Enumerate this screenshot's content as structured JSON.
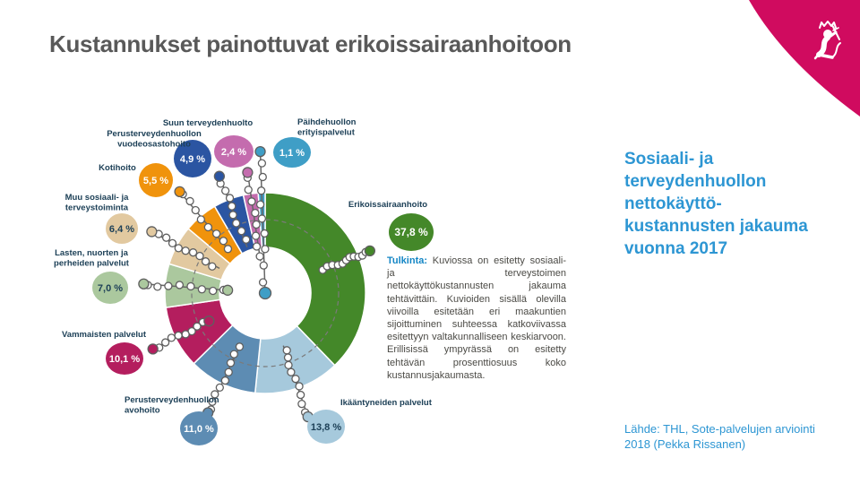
{
  "slide": {
    "title": "Kustannukset painottuvat erikoissairaanhoitoon",
    "accent_color": "#d00b5f"
  },
  "chart_data": {
    "type": "pie",
    "subtype": "donut",
    "title": "Sosiaali- ja terveydenhuollon nettokäyttökustannusten jakauma vuonna 2017",
    "unit": "%",
    "start_angle_deg": 0,
    "direction": "clockwise",
    "legend_note": "Katkoviiva = valtakunnallinen keskiarvo; viivojen pisteet = eri maakuntien sijoittuminen",
    "segments": [
      {
        "id": "erikois",
        "label": "Erikoissairaanhoito",
        "label_lines": [
          "Erikoissairaanhoito"
        ],
        "value": 37.8,
        "display": "37,8 %",
        "color": "#448829",
        "text_color": "#ffffff"
      },
      {
        "id": "ikaantyneiden",
        "label": "Ikääntyneiden palvelut",
        "label_lines": [
          "Ikääntyneiden palvelut"
        ],
        "value": 13.8,
        "display": "13,8 %",
        "color": "#a6c9dc",
        "text_color": "#1d4057"
      },
      {
        "id": "avohoito",
        "label": "Perusterveydenhuollon avohoito",
        "label_lines": [
          "Perusterveydenhuollon",
          "avohoito"
        ],
        "value": 11.0,
        "display": "11,0 %",
        "color": "#5d8cb3",
        "text_color": "#ffffff"
      },
      {
        "id": "vammaisten",
        "label": "Vammaisten palvelut",
        "label_lines": [
          "Vammaisten palvelut"
        ],
        "value": 10.1,
        "display": "10,1 %",
        "color": "#b41e5e",
        "text_color": "#ffffff"
      },
      {
        "id": "lasten",
        "label": "Lasten, nuorten ja perheiden palvelut",
        "label_lines": [
          "Lasten, nuorten ja",
          "perheiden palvelut"
        ],
        "value": 7.0,
        "display": "7,0 %",
        "color": "#abc89e",
        "text_color": "#1d4057"
      },
      {
        "id": "muu",
        "label": "Muu sosiaali- ja terveystoiminta",
        "label_lines": [
          "Muu sosiaali- ja",
          "terveystoiminta"
        ],
        "value": 6.4,
        "display": "6,4 %",
        "color": "#e2c9a0",
        "text_color": "#1d4057"
      },
      {
        "id": "kotihoito",
        "label": "Kotihoito",
        "label_lines": [
          "Kotihoito"
        ],
        "value": 5.5,
        "display": "5,5 %",
        "color": "#f0930c",
        "text_color": "#ffffff"
      },
      {
        "id": "vuodeosasto",
        "label": "Perusterveydenhuollon vuodeosastohoito",
        "label_lines": [
          "Perusterveydenhuollon",
          "vuodeosastohoito"
        ],
        "value": 4.9,
        "display": "4,9 %",
        "color": "#2b55a2",
        "text_color": "#ffffff"
      },
      {
        "id": "suun",
        "label": "Suun terveydenhuolto",
        "label_lines": [
          "Suun terveydenhuolto"
        ],
        "value": 2.4,
        "display": "2,4 %",
        "color": "#c46cae",
        "text_color": "#ffffff"
      },
      {
        "id": "paihde",
        "label": "Päihdehuollon erityispalvelut",
        "label_lines": [
          "Päihdehuollon",
          "erityispalvelut"
        ],
        "value": 1.1,
        "display": "1,1 %",
        "color": "#3f9ec6",
        "text_color": "#ffffff"
      }
    ]
  },
  "interpretation": {
    "lead": "Tulkinta:",
    "body": "Kuviossa on esitetty sosiaali- ja terveystoimen nettokäyttökustannusten jakauma tehtävittäin. Kuvioiden sisällä olevilla viivoilla esitetään eri maakuntien sijoittuminen suhteessa katkoviivassa esitettyyn valtakunnalliseen keskiarvoon. Erillisissä ympyrässä on esitetty tehtävän prosenttiosuus koko kustannusjakaumasta."
  },
  "side_panel": {
    "heading": "Sosiaali- ja\nterveydenhuollon\nnettokäyttö-\nkustannusten jakauma\nvuonna 2017",
    "heading_color": "#2d96d3",
    "source": "Lähde: THL, Sote-palvelujen arviointi\n2018 (Pekka Rissanen)",
    "corner_color": "#d00b5f",
    "corner_icon": "finnish-lion-coat-of-arms"
  }
}
